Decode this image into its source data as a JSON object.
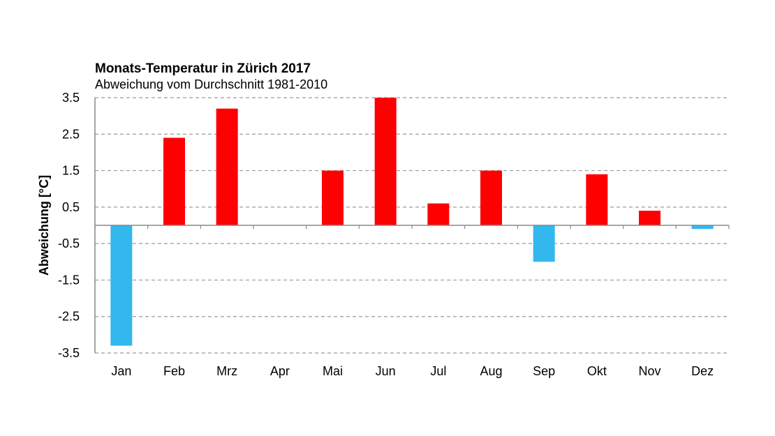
{
  "chart_data": {
    "type": "bar",
    "title": "Monats-Temperatur in Zürich 2017",
    "subtitle": "Abweichung vom Durchschnitt 1981-2010",
    "xlabel": "",
    "ylabel": "Abweichung [°C]",
    "categories": [
      "Jan",
      "Feb",
      "Mrz",
      "Apr",
      "Mai",
      "Jun",
      "Jul",
      "Aug",
      "Sep",
      "Okt",
      "Nov",
      "Dez"
    ],
    "values": [
      -3.3,
      2.4,
      3.2,
      0.0,
      1.5,
      3.5,
      0.6,
      1.5,
      -1.0,
      1.4,
      0.4,
      -0.1
    ],
    "ylim": [
      -3.5,
      3.5
    ],
    "yticks": [
      "3.5",
      "2.5",
      "1.5",
      "0.5",
      "-0.5",
      "-1.5",
      "-2.5",
      "-3.5"
    ],
    "grid": true,
    "colors": {
      "positive": "#ff0000",
      "negative": "#33b8ee",
      "grid": "#9a9a9a",
      "axis": "#888888"
    }
  }
}
